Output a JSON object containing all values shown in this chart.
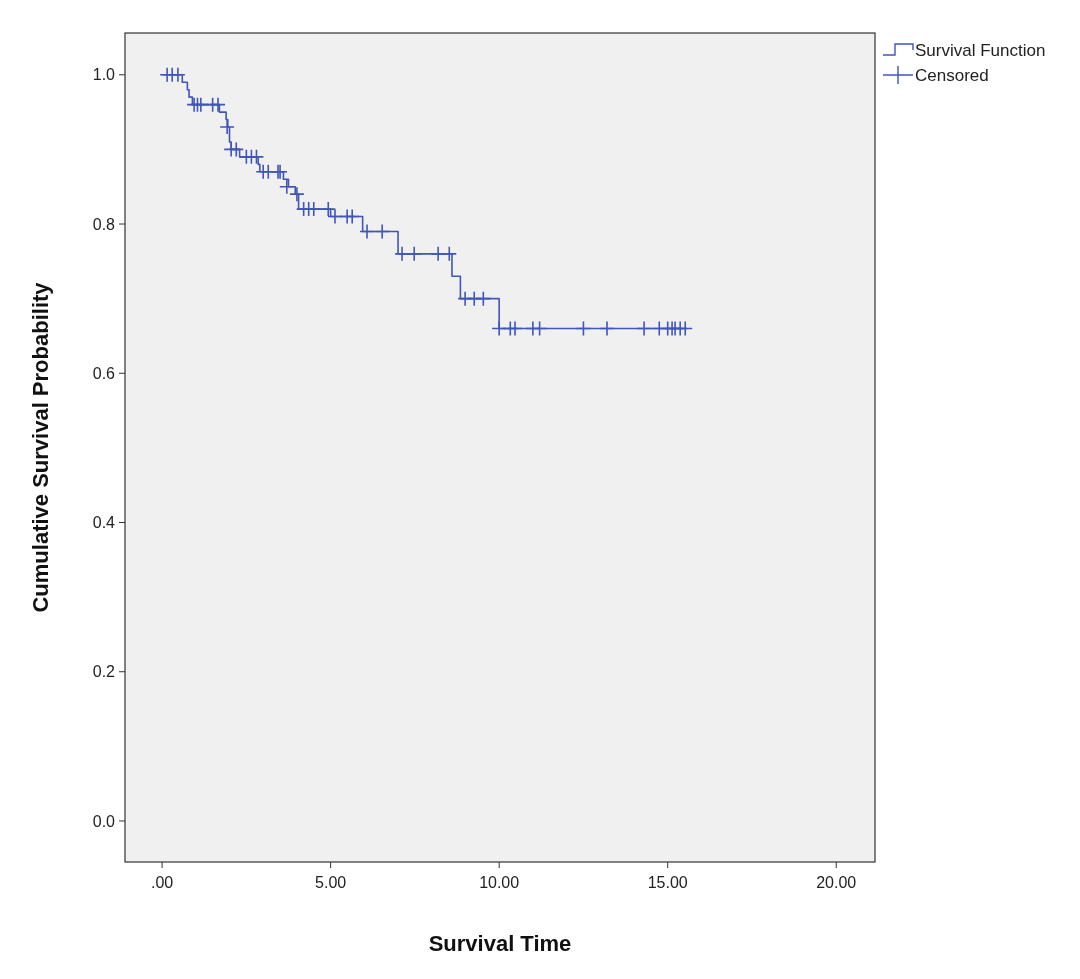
{
  "chart_data": {
    "type": "step",
    "xlabel": "Survival Time",
    "ylabel": "Cumulative Survival Probability",
    "xlim": [
      -1.1,
      21.15
    ],
    "ylim": [
      -0.055,
      1.056
    ],
    "xticks": [
      {
        "value": 0,
        "label": ".00"
      },
      {
        "value": 5,
        "label": "5.00"
      },
      {
        "value": 10,
        "label": "10.00"
      },
      {
        "value": 15,
        "label": "15.00"
      },
      {
        "value": 20,
        "label": "20.00"
      }
    ],
    "yticks": [
      {
        "value": 0,
        "label": "0.0"
      },
      {
        "value": 0.2,
        "label": "0.2"
      },
      {
        "value": 0.4,
        "label": "0.4"
      },
      {
        "value": 0.6,
        "label": "0.6"
      },
      {
        "value": 0.8,
        "label": "0.8"
      },
      {
        "value": 1,
        "label": "1.0"
      }
    ],
    "grid": false,
    "legend": "top right",
    "series": [
      {
        "name": "Survival Function",
        "color": "#4056b8",
        "marker": "none",
        "x": [
          0,
          0.6,
          0.75,
          0.8,
          0.9,
          1.7,
          1.9,
          1.95,
          2.0,
          2.05,
          2.3,
          2.85,
          2.9,
          3.6,
          3.75,
          3.95,
          4.05,
          5.0,
          5.95,
          7.0,
          8.6,
          8.85,
          10.0,
          15.55
        ],
        "values": [
          1.0,
          0.99,
          0.98,
          0.97,
          0.96,
          0.95,
          0.94,
          0.93,
          0.91,
          0.9,
          0.89,
          0.88,
          0.87,
          0.86,
          0.85,
          0.84,
          0.82,
          0.81,
          0.79,
          0.76,
          0.73,
          0.7,
          0.66,
          0.66
        ]
      },
      {
        "name": "Censored",
        "type": "scatter",
        "color": "#4056b8",
        "marker": "cross",
        "x": [
          0.15,
          0.3,
          0.47,
          0.95,
          1.05,
          1.15,
          1.5,
          1.66,
          1.93,
          2.05,
          2.2,
          2.5,
          2.65,
          2.8,
          3.0,
          3.15,
          3.44,
          3.5,
          3.7,
          4.0,
          4.2,
          4.35,
          4.5,
          4.93,
          5.13,
          5.49,
          5.64,
          6.08,
          6.53,
          7.12,
          7.48,
          8.19,
          8.52,
          8.99,
          9.26,
          9.53,
          10.0,
          10.33,
          10.47,
          11.0,
          11.2,
          12.5,
          13.2,
          14.3,
          14.75,
          15.0,
          15.13,
          15.22,
          15.37,
          15.52
        ],
        "values": [
          1.0,
          1.0,
          1.0,
          0.96,
          0.96,
          0.96,
          0.96,
          0.96,
          0.93,
          0.9,
          0.9,
          0.89,
          0.89,
          0.89,
          0.87,
          0.87,
          0.87,
          0.87,
          0.85,
          0.84,
          0.82,
          0.82,
          0.82,
          0.82,
          0.81,
          0.81,
          0.81,
          0.79,
          0.79,
          0.76,
          0.76,
          0.76,
          0.76,
          0.7,
          0.7,
          0.7,
          0.66,
          0.66,
          0.66,
          0.66,
          0.66,
          0.66,
          0.66,
          0.66,
          0.66,
          0.66,
          0.66,
          0.66,
          0.66,
          0.66
        ]
      }
    ]
  }
}
